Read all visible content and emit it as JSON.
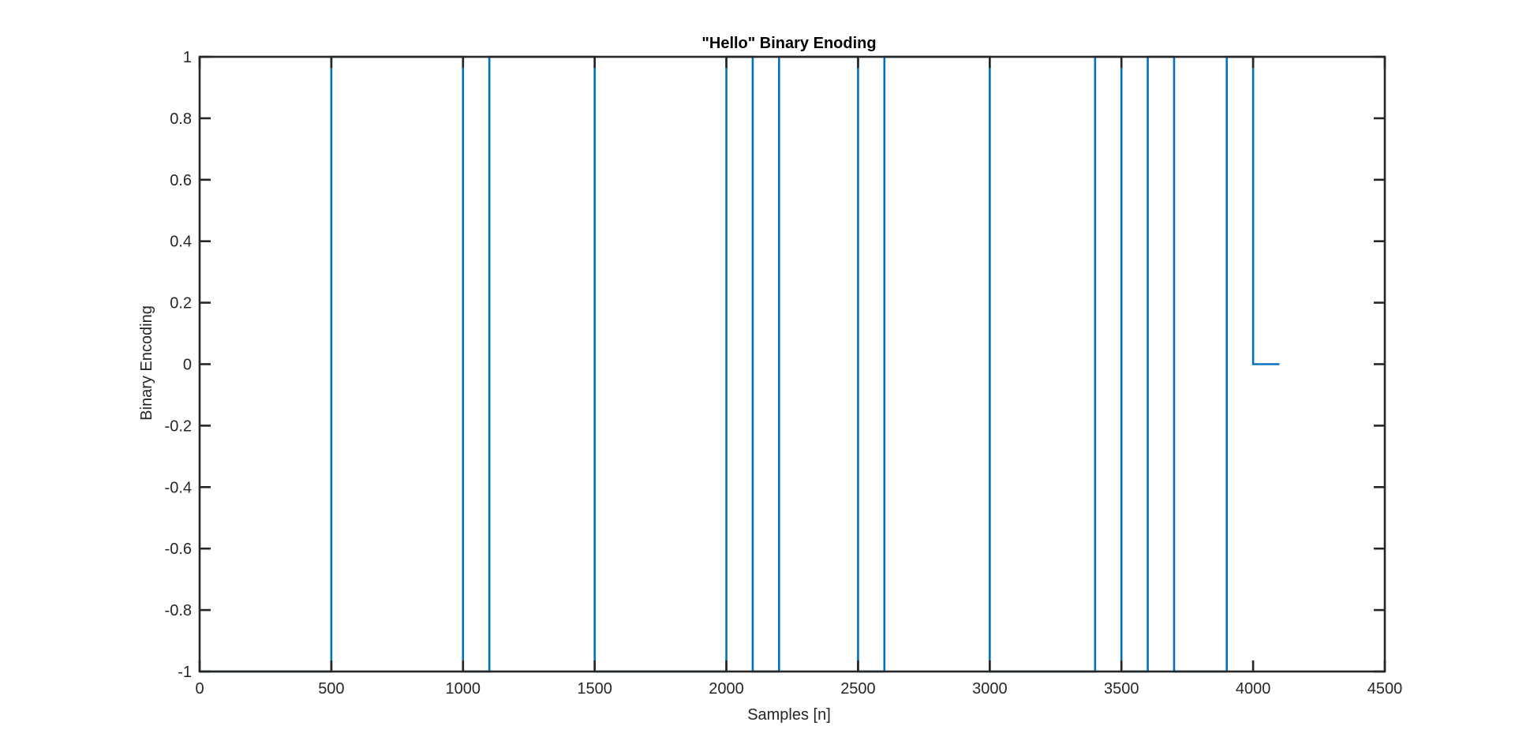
{
  "figure": {
    "background": "#ffffff",
    "axis_color": "#262626",
    "line_color": "#0072BD"
  },
  "chart_data": {
    "type": "line",
    "title": "\"Hello\" Binary Enoding",
    "xlabel": "Samples [n]",
    "ylabel": "Binary Encoding",
    "xlim": [
      0,
      4500
    ],
    "ylim": [
      -1,
      1
    ],
    "xticks": [
      0,
      500,
      1000,
      1500,
      2000,
      2500,
      3000,
      3500,
      4000,
      4500
    ],
    "xtick_labels": [
      "0",
      "500",
      "1000",
      "1500",
      "2000",
      "2500",
      "3000",
      "3500",
      "4000",
      "4500"
    ],
    "yticks": [
      -1,
      -0.8,
      -0.6,
      -0.4,
      -0.2,
      0,
      0.2,
      0.4,
      0.6,
      0.8,
      1
    ],
    "ytick_labels": [
      "-1",
      "-0.8",
      "-0.6",
      "-0.4",
      "-0.2",
      "0",
      "0.2",
      "0.4",
      "0.6",
      "0.8",
      "1"
    ],
    "grid": false,
    "legend": "none",
    "series": [
      {
        "color": "#0072BD",
        "x": [
          0,
          500,
          500,
          1000,
          1000,
          1100,
          1100,
          1500,
          1500,
          2000,
          2000,
          2100,
          2100,
          2200,
          2200,
          2500,
          2500,
          2600,
          2600,
          3000,
          3000,
          3400,
          3400,
          3500,
          3500,
          3600,
          3600,
          3700,
          3700,
          3900,
          3900,
          4000,
          4000,
          4100
        ],
        "y": [
          -1,
          -1,
          1,
          1,
          -1,
          -1,
          1,
          1,
          -1,
          -1,
          1,
          1,
          -1,
          -1,
          1,
          1,
          -1,
          -1,
          1,
          1,
          -1,
          -1,
          1,
          1,
          -1,
          -1,
          1,
          1,
          -1,
          -1,
          1,
          1,
          0,
          0
        ]
      }
    ]
  }
}
